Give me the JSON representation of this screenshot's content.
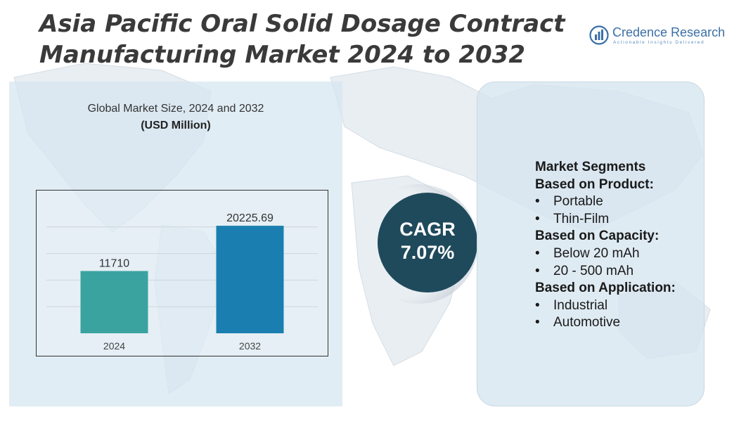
{
  "header": {
    "title_line1": "Asia Pacific Oral Solid Dosage Contract",
    "title_line2": "Manufacturing Market 2024 to 2032"
  },
  "brand": {
    "name": "Credence Research",
    "tagline": "Actionable Insights Delivered"
  },
  "chart_data": {
    "type": "bar",
    "title": "Global Market Size, 2024 and 2032",
    "subtitle": "(USD Million)",
    "categories": [
      "2024",
      "2032"
    ],
    "values": [
      11710,
      20225.69
    ],
    "value_labels": [
      "11710",
      "20225.69"
    ],
    "bar_colors": [
      "#3aa3a0",
      "#1a7fb0"
    ],
    "grid": true,
    "ylim": [
      0,
      25000
    ]
  },
  "cagr": {
    "label": "CAGR",
    "value": "7.07%"
  },
  "segments": {
    "heading": "Market Segments",
    "groups": [
      {
        "label": "Based on Product:",
        "items": [
          "Portable",
          "Thin-Film"
        ]
      },
      {
        "label": "Based on Capacity:",
        "items": [
          "Below 20 mAh",
          "20 - 500 mAh"
        ]
      },
      {
        "label": "Based on Application:",
        "items": [
          "Industrial",
          "Automotive"
        ]
      }
    ],
    "bullet": "•"
  },
  "colors": {
    "panel_bg": "#d6e6f0",
    "cagr_circle": "#1f4a5c",
    "title_text": "#3a3a3a",
    "brand_blue": "#3b6fa6"
  }
}
